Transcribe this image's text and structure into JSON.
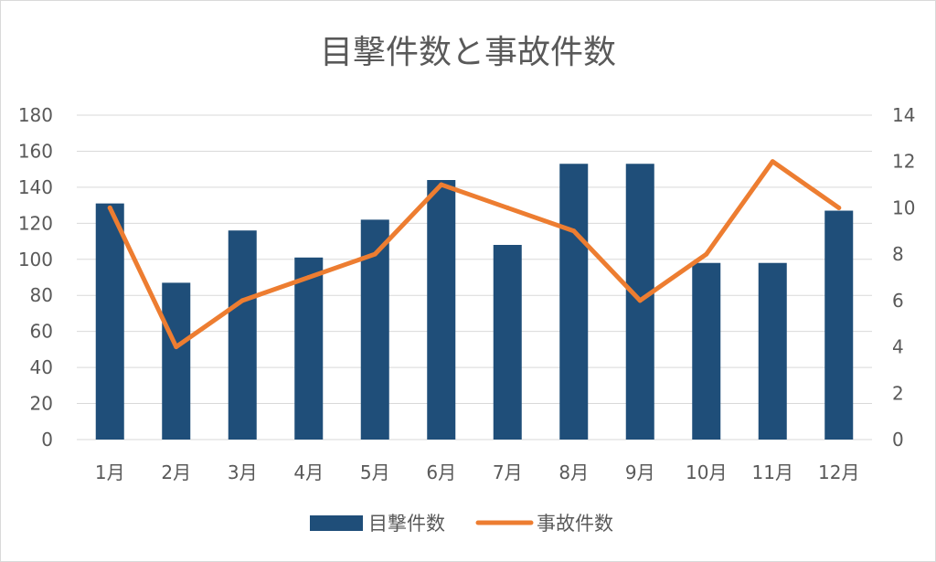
{
  "chart_data": {
    "type": "bar",
    "title": "目撃件数と事故件数",
    "categories": [
      "1月",
      "2月",
      "3月",
      "4月",
      "5月",
      "6月",
      "7月",
      "8月",
      "9月",
      "10月",
      "11月",
      "12月"
    ],
    "series": [
      {
        "name": "目撃件数",
        "type": "bar",
        "axis": "left",
        "color": "#1f4e79",
        "values": [
          131,
          87,
          116,
          101,
          122,
          144,
          108,
          153,
          153,
          98,
          98,
          127
        ]
      },
      {
        "name": "事故件数",
        "type": "line",
        "axis": "right",
        "color": "#ed7d31",
        "values": [
          10,
          4,
          6,
          7,
          8,
          11,
          10,
          9,
          6,
          8,
          12,
          10
        ]
      }
    ],
    "y_left": {
      "ylim": [
        0,
        180
      ],
      "ticks": [
        "0",
        "20",
        "40",
        "60",
        "80",
        "100",
        "120",
        "140",
        "160",
        "180"
      ]
    },
    "y_right": {
      "ylim": [
        0,
        14
      ],
      "ticks": [
        "0",
        "2",
        "4",
        "6",
        "8",
        "10",
        "12",
        "14"
      ]
    },
    "grid": true,
    "legend": "bottom"
  }
}
